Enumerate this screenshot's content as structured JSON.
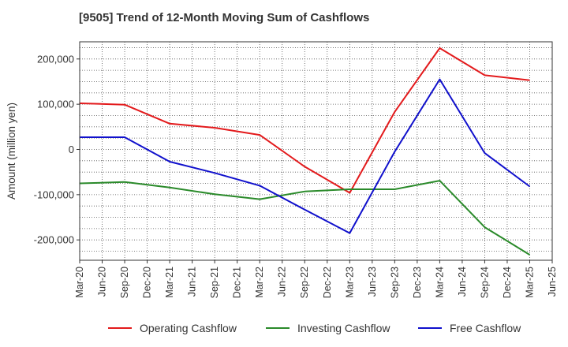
{
  "chart_data": {
    "type": "line",
    "title": "[9505]  Trend of 12-Month Moving Sum of Cashflows",
    "ylabel": "Amount (million yen)",
    "xlabel": "",
    "ylim": [
      -245000,
      238000
    ],
    "yticks": [
      -200000,
      -100000,
      0,
      100000,
      200000
    ],
    "ytick_labels": [
      "-200,000",
      "-100,000",
      "0",
      "100,000",
      "200,000"
    ],
    "x_tick_labels": [
      "Mar-20",
      "Jun-20",
      "Sep-20",
      "Dec-20",
      "Mar-21",
      "Jun-21",
      "Sep-21",
      "Dec-21",
      "Mar-22",
      "Jun-22",
      "Sep-22",
      "Dec-22",
      "Mar-23",
      "Jun-23",
      "Sep-23",
      "Dec-23",
      "Mar-24",
      "Jun-24",
      "Sep-24",
      "Dec-24",
      "Mar-25",
      "Jun-25"
    ],
    "grid": true,
    "legend_position": "bottom",
    "series": [
      {
        "name": "Operating Cashflow",
        "color": "#e31a1c",
        "x": [
          "Mar-20",
          "Sep-20",
          "Mar-21",
          "Sep-21",
          "Mar-22",
          "Sep-22",
          "Mar-23",
          "Sep-23",
          "Mar-24",
          "Sep-24",
          "Mar-25"
        ],
        "values": [
          102000,
          99000,
          57000,
          48000,
          32000,
          -38000,
          -96000,
          83000,
          224000,
          164000,
          153000
        ]
      },
      {
        "name": "Investing Cashflow",
        "color": "#2a8a2a",
        "x": [
          "Mar-20",
          "Sep-20",
          "Mar-21",
          "Sep-21",
          "Mar-22",
          "Sep-22",
          "Mar-23",
          "Sep-23",
          "Mar-24",
          "Sep-24",
          "Mar-25"
        ],
        "values": [
          -75000,
          -72000,
          -84000,
          -99000,
          -110000,
          -93000,
          -88000,
          -88000,
          -69000,
          -172000,
          -233000
        ]
      },
      {
        "name": "Free Cashflow",
        "color": "#1010cc",
        "x": [
          "Mar-20",
          "Sep-20",
          "Mar-21",
          "Sep-21",
          "Mar-22",
          "Sep-22",
          "Mar-23",
          "Sep-23",
          "Mar-24",
          "Sep-24",
          "Mar-25"
        ],
        "values": [
          27000,
          27000,
          -27000,
          -52000,
          -80000,
          -133000,
          -185000,
          -5000,
          155000,
          -8000,
          -82000
        ]
      }
    ]
  }
}
